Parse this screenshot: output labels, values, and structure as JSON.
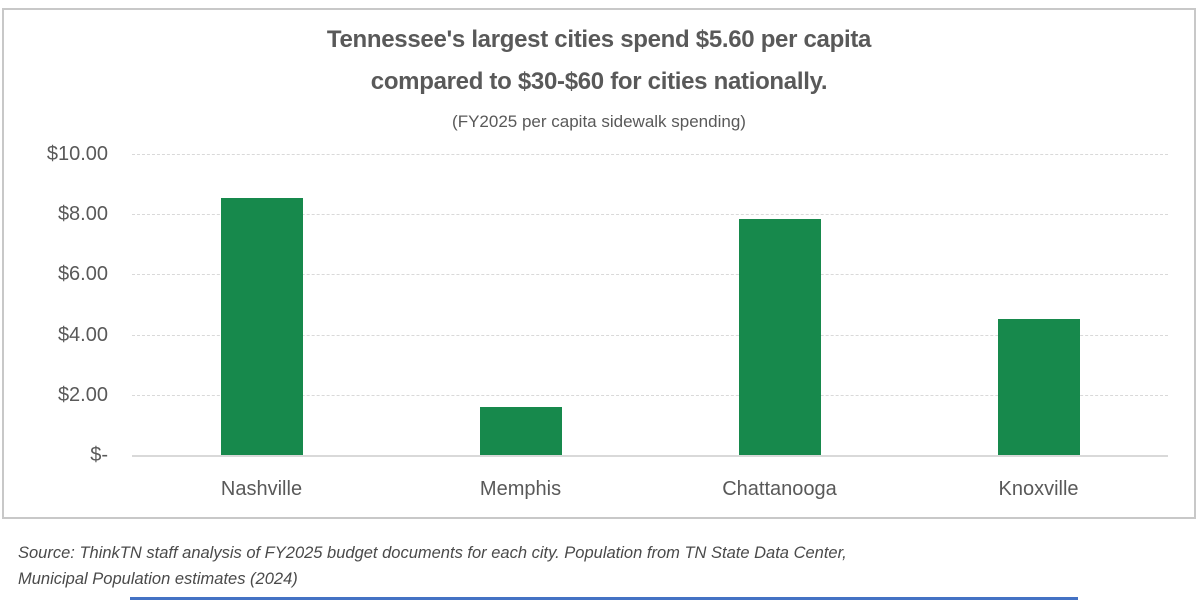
{
  "chart": {
    "title_line1": "Tennessee's largest cities spend $5.60 per capita",
    "title_line2": "compared to $30-$60 for cities nationally.",
    "subtitle": "(FY2025 per capita sidewalk spending)"
  },
  "chart_data": {
    "type": "bar",
    "categories": [
      "Nashville",
      "Memphis",
      "Chattanooga",
      "Knoxville"
    ],
    "values": [
      8.53,
      1.6,
      7.83,
      4.53
    ],
    "title": "Tennessee's largest cities spend $5.60 per capita compared to $30-$60 for cities nationally.",
    "subtitle": "(FY2025 per capita sidewalk spending)",
    "xlabel": "",
    "ylabel": "",
    "ylim": [
      0,
      10
    ],
    "y_ticks": [
      {
        "value": 10,
        "label": "$10.00"
      },
      {
        "value": 8,
        "label": "$8.00"
      },
      {
        "value": 6,
        "label": "$6.00"
      },
      {
        "value": 4,
        "label": "$4.00"
      },
      {
        "value": 2,
        "label": "$2.00"
      },
      {
        "value": 0,
        "label": "$-"
      }
    ],
    "grid": true,
    "legend": false,
    "bar_color": "#17894C"
  },
  "source_note": {
    "line1": "Source: ThinkTN staff analysis of FY2025 budget documents for each city. Population from TN State Data Center,",
    "line2": "Municipal Population estimates (2024)"
  },
  "colors": {
    "bar": "#17894C",
    "title_text": "#595959",
    "axis_text": "#595959",
    "gridline": "#d9d9d9",
    "card_border": "#c8c8c8",
    "accent_bar": "#4472C4",
    "background": "#ffffff"
  }
}
